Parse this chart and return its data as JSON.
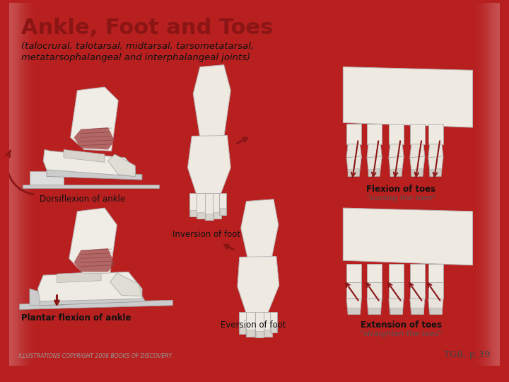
{
  "title": "Ankle, Foot and Toes",
  "subtitle_line1": "(talocrural, talotarsal, midtarsal, tarsometatarsal,",
  "subtitle_line2": "metatarsophalangeal and interphalangeal joints)",
  "title_color": "#8B1515",
  "subtitle_color": "#111111",
  "bg_color": "#FFFFFF",
  "inner_bg": "#FAFAF8",
  "border_color": "#B82020",
  "footer_left": "ILLUSTRATIONS COPYRIGHT 2006 BOOKS OF DISCOVERY",
  "footer_right": "TGB, p.39",
  "footer_color": "#999999",
  "footer_right_color": "#444444",
  "red": "#8B1515",
  "sketch_color": "#E8E4DC",
  "sketch_edge": "#AAAAAA",
  "labels": {
    "dorsiflexion": "Dorsiflexion of ankle",
    "inversion": "Inversion of foot",
    "flexion_toes": "Flexion of toes",
    "flexion_toes_sub": "\"curling the toes\"",
    "plantar": "Plantar flexion of ankle",
    "eversion": "Eversion of foot",
    "extension_toes": "Extension of toes",
    "extension_toes_sub": "\"straighten the toes\""
  }
}
